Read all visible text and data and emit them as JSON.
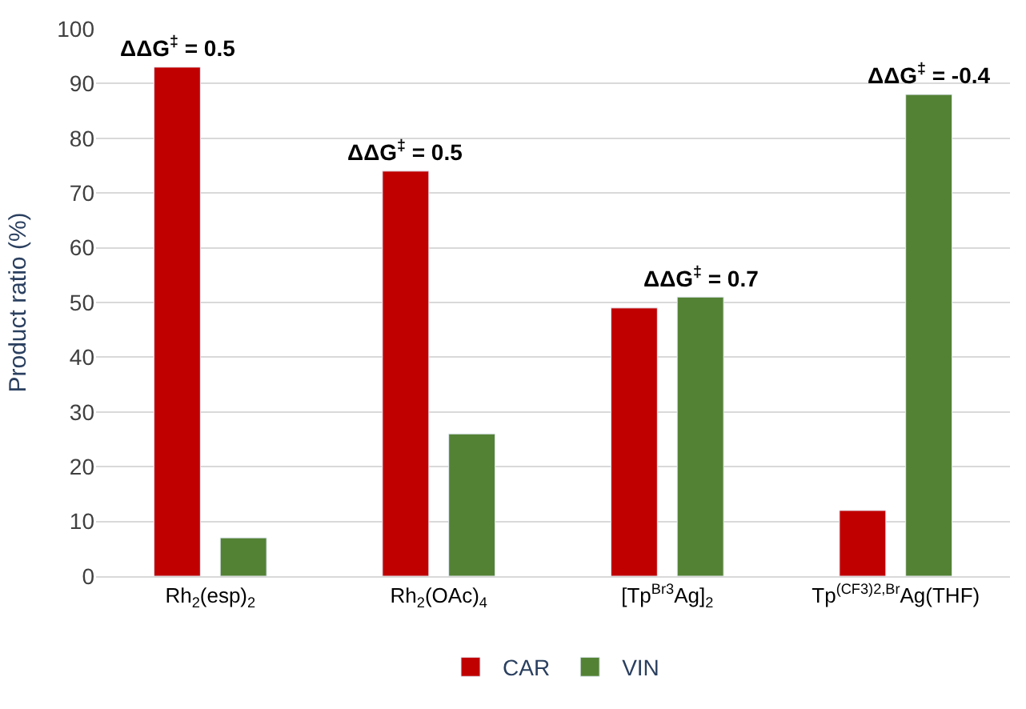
{
  "chart_data": {
    "type": "bar",
    "ylabel": "Product ratio (%)",
    "categories": [
      "Rh$_{2}$(esp)$_{2}$",
      "Rh$_{2}$(OAc)$_{4}$",
      "[Tp$^{Br3}$Ag]$_{2}$",
      "Tp$^{(CF3)2,Br}$Ag(THF)"
    ],
    "series": [
      {
        "name": "CAR",
        "color": "#c00000",
        "values": [
          93,
          74,
          49,
          12
        ]
      },
      {
        "name": "VIN",
        "color": "#548235",
        "values": [
          7,
          26,
          51,
          88
        ]
      }
    ],
    "ylim": [
      0,
      100
    ],
    "yticks": [
      0,
      10,
      20,
      30,
      40,
      50,
      60,
      70,
      80,
      90,
      100
    ],
    "grid": "y",
    "legend": "bottom",
    "annotations": [
      "ΔΔG$^{‡}$ = 0.5",
      "ΔΔG$^{‡}$ = 0.5",
      "ΔΔG$^{‡}$ = 0.7",
      "ΔΔG$^{‡}$ = -0.4"
    ]
  }
}
